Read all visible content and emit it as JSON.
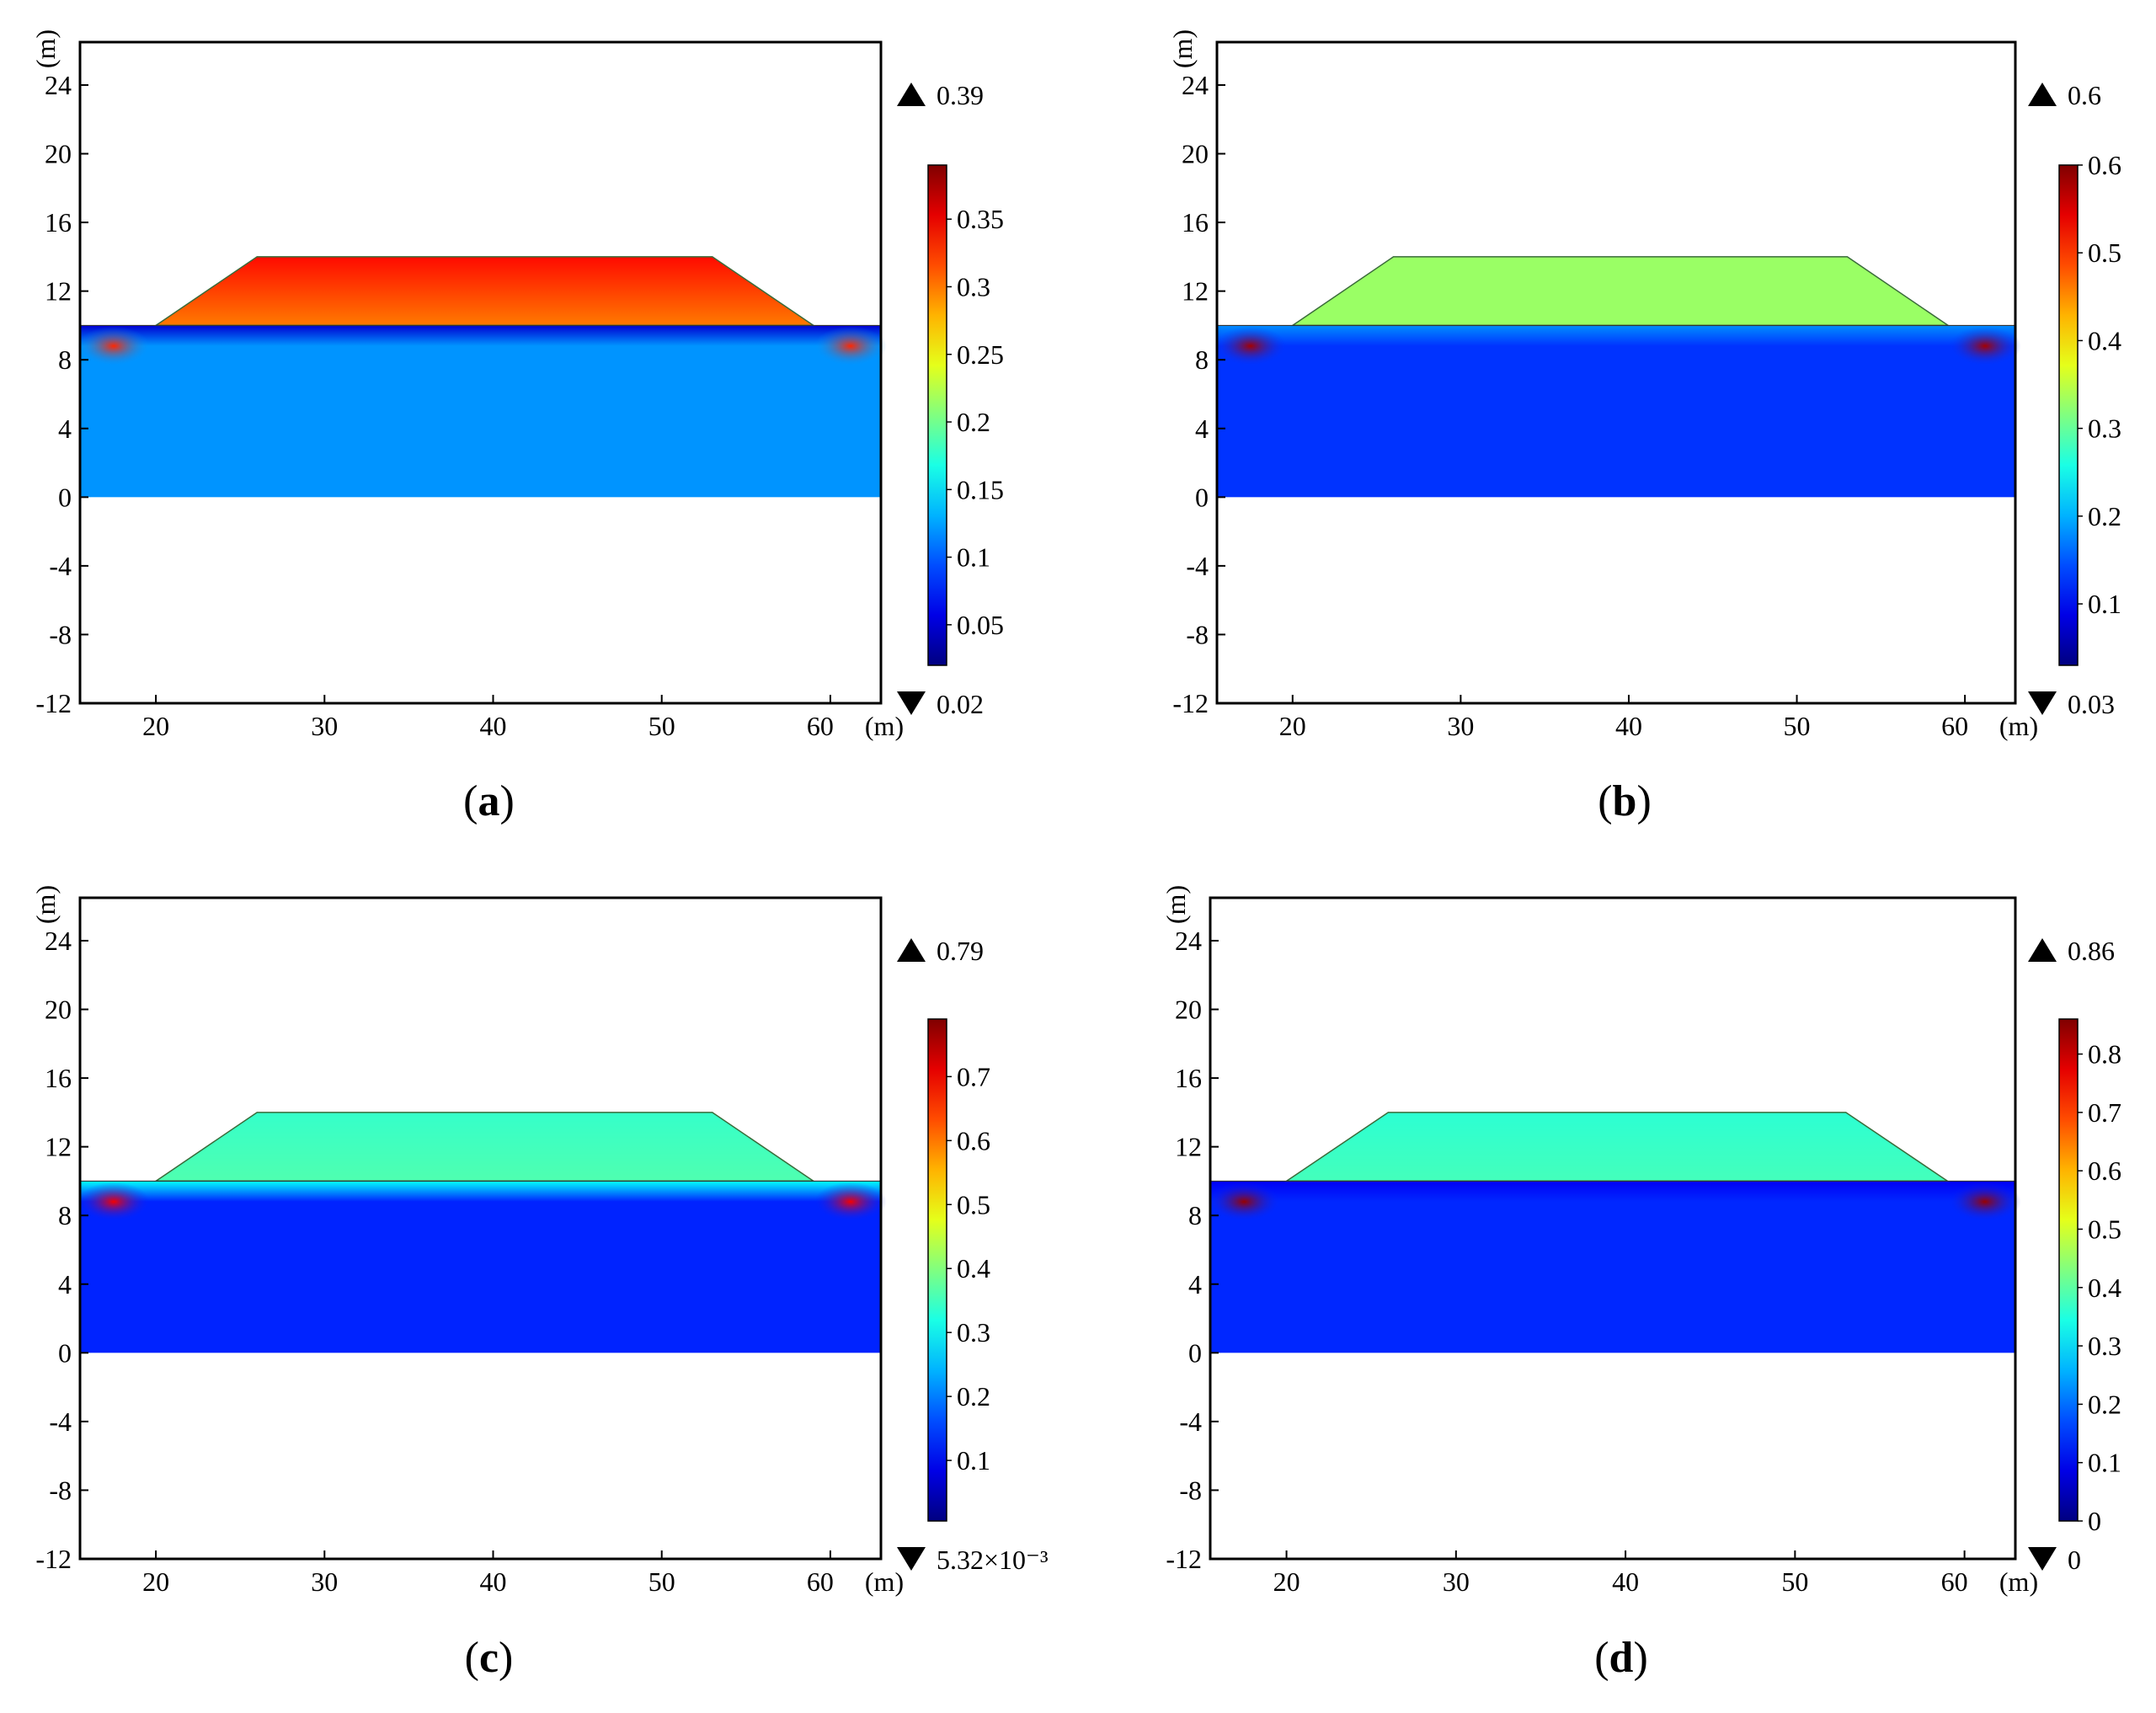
{
  "chart_data": [
    {
      "id": "a",
      "type": "heatmap",
      "caption": "a",
      "x_ticks": [
        "20",
        "30",
        "40",
        "50",
        "60"
      ],
      "x_tick_values": [
        20,
        30,
        40,
        50,
        60
      ],
      "y_ticks": [
        "24",
        "20",
        "16",
        "12",
        "8",
        "4",
        "0",
        "-4",
        "-8",
        "-12"
      ],
      "y_tick_values": [
        24,
        20,
        16,
        12,
        8,
        4,
        0,
        -4,
        -8,
        -12
      ],
      "x_unit": "(m)",
      "y_unit": "(m)",
      "xlim": [
        15.5,
        63
      ],
      "ylim": [
        -12,
        26.5
      ],
      "embankment": {
        "base_left": 20,
        "crest_left": 26,
        "crest_right": 53,
        "base_right": 59,
        "base_y": 10,
        "crest_y": 14
      },
      "foundation": {
        "x_range": [
          15.5,
          63
        ],
        "y_range": [
          0,
          10
        ]
      },
      "max_label": "0.39",
      "min_label": "0.02",
      "colorbar_ticks": [
        "0.35",
        "0.3",
        "0.25",
        "0.2",
        "0.15",
        "0.1",
        "0.05"
      ],
      "colorbar_values": [
        0.35,
        0.3,
        0.25,
        0.2,
        0.15,
        0.1,
        0.05
      ],
      "colorbar_range": [
        0.02,
        0.39
      ],
      "foundation_value": 0.12,
      "embankment_value": 0.3,
      "crest_value": 0.34,
      "edge_value": 0.33,
      "interface_value": 0.05
    },
    {
      "id": "b",
      "type": "heatmap",
      "caption": "b",
      "x_ticks": [
        "20",
        "30",
        "40",
        "50",
        "60"
      ],
      "x_tick_values": [
        20,
        30,
        40,
        50,
        60
      ],
      "y_ticks": [
        "24",
        "20",
        "16",
        "12",
        "8",
        "4",
        "0",
        "-4",
        "-8",
        "-12"
      ],
      "y_tick_values": [
        24,
        20,
        16,
        12,
        8,
        4,
        0,
        -4,
        -8,
        -12
      ],
      "x_unit": "(m)",
      "y_unit": "(m)",
      "xlim": [
        15.5,
        63
      ],
      "ylim": [
        -12,
        26.5
      ],
      "embankment": {
        "base_left": 20,
        "crest_left": 26,
        "crest_right": 53,
        "base_right": 59,
        "base_y": 10,
        "crest_y": 14
      },
      "foundation": {
        "x_range": [
          15.5,
          63
        ],
        "y_range": [
          0,
          10
        ]
      },
      "max_label": "0.6",
      "min_label": "0.03",
      "colorbar_ticks": [
        "0.6",
        "0.5",
        "0.4",
        "0.3",
        "0.2",
        "0.1"
      ],
      "colorbar_values": [
        0.6,
        0.5,
        0.4,
        0.3,
        0.2,
        0.1
      ],
      "colorbar_range": [
        0.03,
        0.6
      ],
      "foundation_value": 0.13,
      "embankment_value": 0.33,
      "crest_value": 0.33,
      "edge_value": 0.58,
      "interface_value": 0.18
    },
    {
      "id": "c",
      "type": "heatmap",
      "caption": "c",
      "x_ticks": [
        "20",
        "30",
        "40",
        "50",
        "60"
      ],
      "x_tick_values": [
        20,
        30,
        40,
        50,
        60
      ],
      "y_ticks": [
        "24",
        "20",
        "16",
        "12",
        "8",
        "4",
        "0",
        "-4",
        "-8",
        "-12"
      ],
      "y_tick_values": [
        24,
        20,
        16,
        12,
        8,
        4,
        0,
        -4,
        -8,
        -12
      ],
      "x_unit": "(m)",
      "y_unit": "(m)",
      "xlim": [
        15.5,
        63
      ],
      "ylim": [
        -12,
        26.5
      ],
      "embankment": {
        "base_left": 20,
        "crest_left": 26,
        "crest_right": 53,
        "base_right": 59,
        "base_y": 10,
        "crest_y": 14
      },
      "foundation": {
        "x_range": [
          15.5,
          63
        ],
        "y_range": [
          0,
          10
        ]
      },
      "max_label": "0.79",
      "min_label": "5.32×10⁻³",
      "colorbar_ticks": [
        "0.7",
        "0.6",
        "0.5",
        "0.4",
        "0.3",
        "0.2",
        "0.1"
      ],
      "colorbar_values": [
        0.7,
        0.6,
        0.5,
        0.4,
        0.3,
        0.2,
        0.1
      ],
      "colorbar_range": [
        0.00532,
        0.79
      ],
      "foundation_value": 0.13,
      "embankment_value": 0.36,
      "crest_value": 0.34,
      "edge_value": 0.7,
      "interface_value": 0.3
    },
    {
      "id": "d",
      "type": "heatmap",
      "caption": "d",
      "x_ticks": [
        "20",
        "30",
        "40",
        "50",
        "60"
      ],
      "x_tick_values": [
        20,
        30,
        40,
        50,
        60
      ],
      "y_ticks": [
        "24",
        "20",
        "16",
        "12",
        "8",
        "4",
        "0",
        "-4",
        "-8",
        "-12"
      ],
      "y_tick_values": [
        24,
        20,
        16,
        12,
        8,
        4,
        0,
        -4,
        -8,
        -12
      ],
      "x_unit": "(m)",
      "y_unit": "(m)",
      "xlim": [
        15.5,
        63
      ],
      "ylim": [
        -12,
        26.5
      ],
      "embankment": {
        "base_left": 20,
        "crest_left": 26,
        "crest_right": 53,
        "base_right": 59,
        "base_y": 10,
        "crest_y": 14
      },
      "foundation": {
        "x_range": [
          15.5,
          63
        ],
        "y_range": [
          0,
          10
        ]
      },
      "max_label": "0.86",
      "min_label": "0",
      "colorbar_ticks": [
        "0.8",
        "0.7",
        "0.6",
        "0.5",
        "0.4",
        "0.3",
        "0.2",
        "0.1",
        "0"
      ],
      "colorbar_values": [
        0.8,
        0.7,
        0.6,
        0.5,
        0.4,
        0.3,
        0.2,
        0.1,
        0
      ],
      "colorbar_range": [
        0,
        0.86
      ],
      "foundation_value": 0.14,
      "embankment_value": 0.38,
      "crest_value": 0.36,
      "edge_value": 0.84,
      "interface_value": 0.1
    }
  ]
}
